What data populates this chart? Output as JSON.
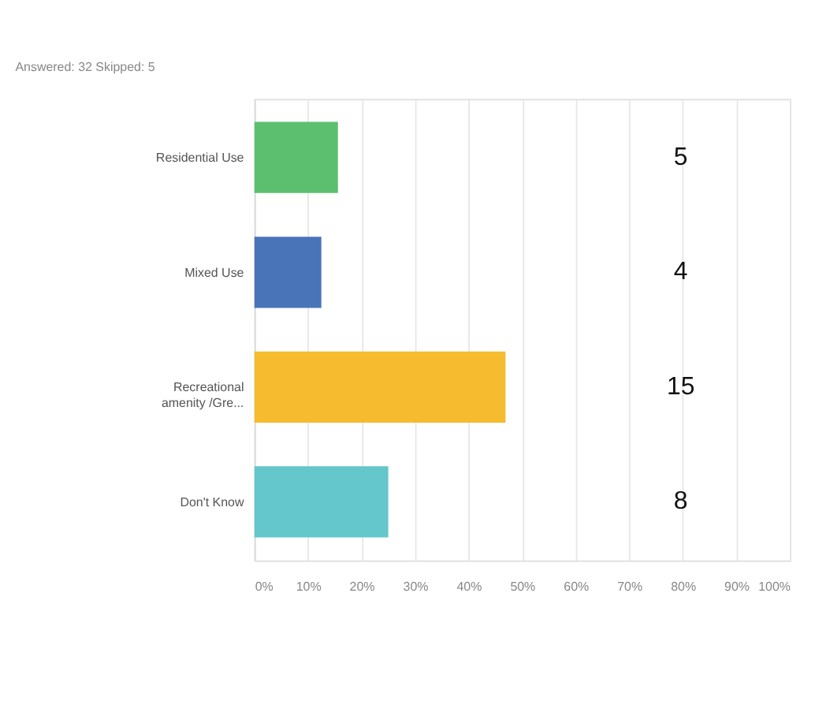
{
  "chart_data": {
    "type": "bar",
    "orientation": "horizontal",
    "categories": [
      "Residential Use",
      "Mixed Use",
      "Recreational\namenity /Gre...",
      "Don't Know"
    ],
    "values": [
      15.6,
      12.5,
      46.9,
      25
    ],
    "colors": [
      "#5cbf70",
      "#4a74b8",
      "#f6bb2f",
      "#63c7cb"
    ],
    "annotations": [
      "Answered: 32    Skipped: 5",
      "5",
      "4",
      "15",
      "8"
    ],
    "xlim": [
      0,
      100
    ],
    "xticks": [
      {
        "value": 0,
        "label": "0%"
      },
      {
        "value": 10,
        "label": "10%"
      },
      {
        "value": 20,
        "label": "20%"
      },
      {
        "value": 30,
        "label": "30%"
      },
      {
        "value": 40,
        "label": "40%"
      },
      {
        "value": 50,
        "label": "50%"
      },
      {
        "value": 60,
        "label": "60%"
      },
      {
        "value": 70,
        "label": "70%"
      },
      {
        "value": 80,
        "label": "80%"
      },
      {
        "value": 90,
        "label": "90%"
      },
      {
        "value": 100,
        "label": "100%"
      }
    ],
    "grid": "x"
  }
}
